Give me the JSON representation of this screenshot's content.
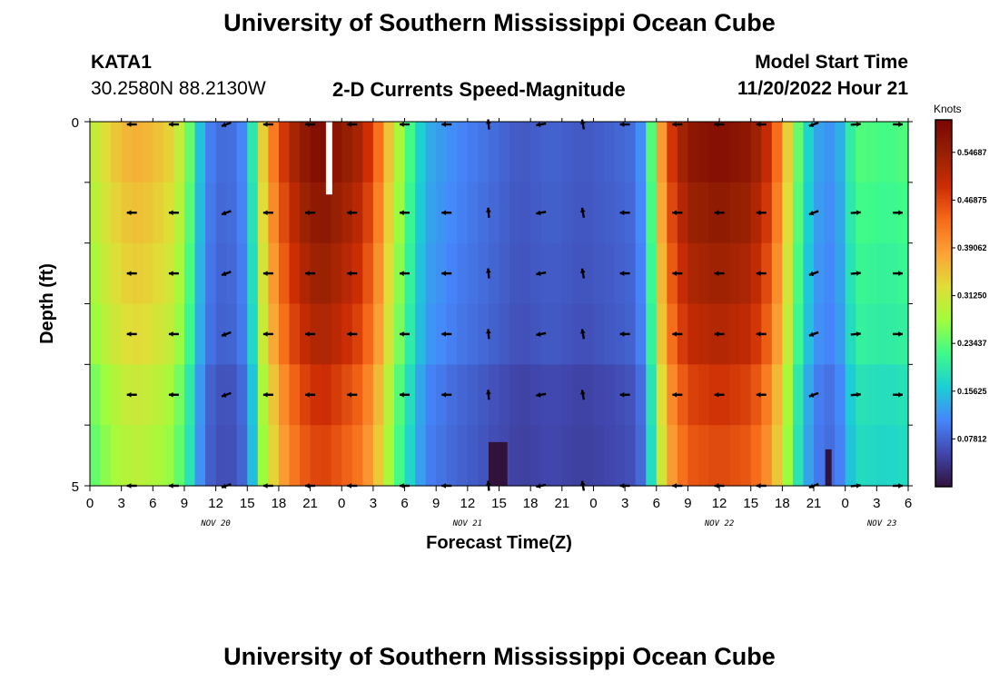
{
  "header": {
    "title": "University of Southern Mississippi Ocean Cube",
    "station_id": "KATA1",
    "station_coords": "30.2580N  88.2130W",
    "product": "2-D Currents Speed-Magnitude",
    "model_label": "Model Start Time",
    "model_start": "11/20/2022 Hour 21"
  },
  "footer": {
    "title": "University of Southern Mississippi Ocean Cube"
  },
  "chart_data": {
    "type": "heatmap",
    "title": "2-D Currents Speed-Magnitude",
    "xlabel": "Forecast Time(Z)",
    "ylabel": "Depth (ft)",
    "y_tick_labels": [
      "0",
      "5"
    ],
    "ylim": [
      0,
      5
    ],
    "x_hours_range": [
      0,
      78
    ],
    "x_tick_labels": [
      "0",
      "3",
      "6",
      "9",
      "12",
      "15",
      "18",
      "21",
      "0",
      "3",
      "6",
      "9",
      "12",
      "15",
      "18",
      "21",
      "0",
      "3",
      "6",
      "9",
      "12",
      "15",
      "18",
      "21",
      "0",
      "3",
      "6"
    ],
    "date_labels": [
      {
        "text": "NOV 20",
        "hour": 12
      },
      {
        "text": "NOV 21",
        "hour": 36
      },
      {
        "text": "NOV 22",
        "hour": 60
      },
      {
        "text": "NOV 23",
        "hour": 75.5
      }
    ],
    "colorbar": {
      "label": "Knots",
      "min": 0.0,
      "max": 0.6,
      "ticks": [
        "0.54687",
        "0.46875",
        "0.39062",
        "0.31250",
        "0.23437",
        "0.15625",
        "0.07812"
      ],
      "tick_values": [
        0.54687,
        0.46875,
        0.39062,
        0.3125,
        0.23437,
        0.15625,
        0.07812
      ],
      "colors": [
        "#30123b",
        "#4146ac",
        "#4686fb",
        "#1bcfd4",
        "#3efb8a",
        "#a2fc3c",
        "#e1dd37",
        "#fca236",
        "#f66b19",
        "#cc2d04",
        "#962103",
        "#7a0403"
      ]
    },
    "speed_by_hour": [
      {
        "hour": 0,
        "value": 0.29
      },
      {
        "hour": 2,
        "value": 0.34
      },
      {
        "hour": 4,
        "value": 0.37
      },
      {
        "hour": 6,
        "value": 0.36
      },
      {
        "hour": 8,
        "value": 0.33
      },
      {
        "hour": 9.5,
        "value": 0.24
      },
      {
        "hour": 11,
        "value": 0.11
      },
      {
        "hour": 13,
        "value": 0.08
      },
      {
        "hour": 15,
        "value": 0.12
      },
      {
        "hour": 16.5,
        "value": 0.34
      },
      {
        "hour": 18,
        "value": 0.46
      },
      {
        "hour": 20,
        "value": 0.55
      },
      {
        "hour": 22,
        "value": 0.59
      },
      {
        "hour": 24,
        "value": 0.56
      },
      {
        "hour": 26,
        "value": 0.52
      },
      {
        "hour": 27.5,
        "value": 0.43
      },
      {
        "hour": 29,
        "value": 0.31
      },
      {
        "hour": 30.5,
        "value": 0.22
      },
      {
        "hour": 32,
        "value": 0.14
      },
      {
        "hour": 35,
        "value": 0.11
      },
      {
        "hour": 38,
        "value": 0.09
      },
      {
        "hour": 41,
        "value": 0.07
      },
      {
        "hour": 44,
        "value": 0.08
      },
      {
        "hour": 47,
        "value": 0.07
      },
      {
        "hour": 50,
        "value": 0.08
      },
      {
        "hour": 52,
        "value": 0.09
      },
      {
        "hour": 53,
        "value": 0.14
      },
      {
        "hour": 54,
        "value": 0.32
      },
      {
        "hour": 55,
        "value": 0.46
      },
      {
        "hour": 57,
        "value": 0.56
      },
      {
        "hour": 60,
        "value": 0.58
      },
      {
        "hour": 63,
        "value": 0.56
      },
      {
        "hour": 65,
        "value": 0.48
      },
      {
        "hour": 66.5,
        "value": 0.34
      },
      {
        "hour": 68,
        "value": 0.19
      },
      {
        "hour": 70,
        "value": 0.11
      },
      {
        "hour": 71.5,
        "value": 0.14
      },
      {
        "hour": 73,
        "value": 0.23
      },
      {
        "hour": 76,
        "value": 0.22
      },
      {
        "hour": 78,
        "value": 0.23
      }
    ],
    "depth_rows": 6,
    "vector_hours": [
      4,
      8,
      13,
      17,
      21,
      25,
      30,
      34,
      38,
      43,
      47,
      51,
      56,
      60,
      64,
      69,
      73,
      77
    ],
    "vector_angles_deg": [
      180,
      180,
      200,
      180,
      180,
      180,
      180,
      180,
      95,
      190,
      100,
      180,
      180,
      180,
      180,
      200,
      5,
      0
    ],
    "anomalies": [
      {
        "hour_start": 22.5,
        "hour_end": 23.1,
        "depth_start": 0,
        "depth_end": 1,
        "color": "#ffffff"
      },
      {
        "hour_start": 38.7,
        "hour_end": 39.4,
        "depth_start": 4.5,
        "depth_end": 5,
        "color": "#000000"
      },
      {
        "hour_start": 38.0,
        "hour_end": 39.8,
        "depth_start": 4.4,
        "depth_end": 5,
        "color": "#30123b"
      },
      {
        "hour_start": 70.1,
        "hour_end": 70.7,
        "depth_start": 4.5,
        "depth_end": 5,
        "color": "#30123b"
      }
    ]
  }
}
